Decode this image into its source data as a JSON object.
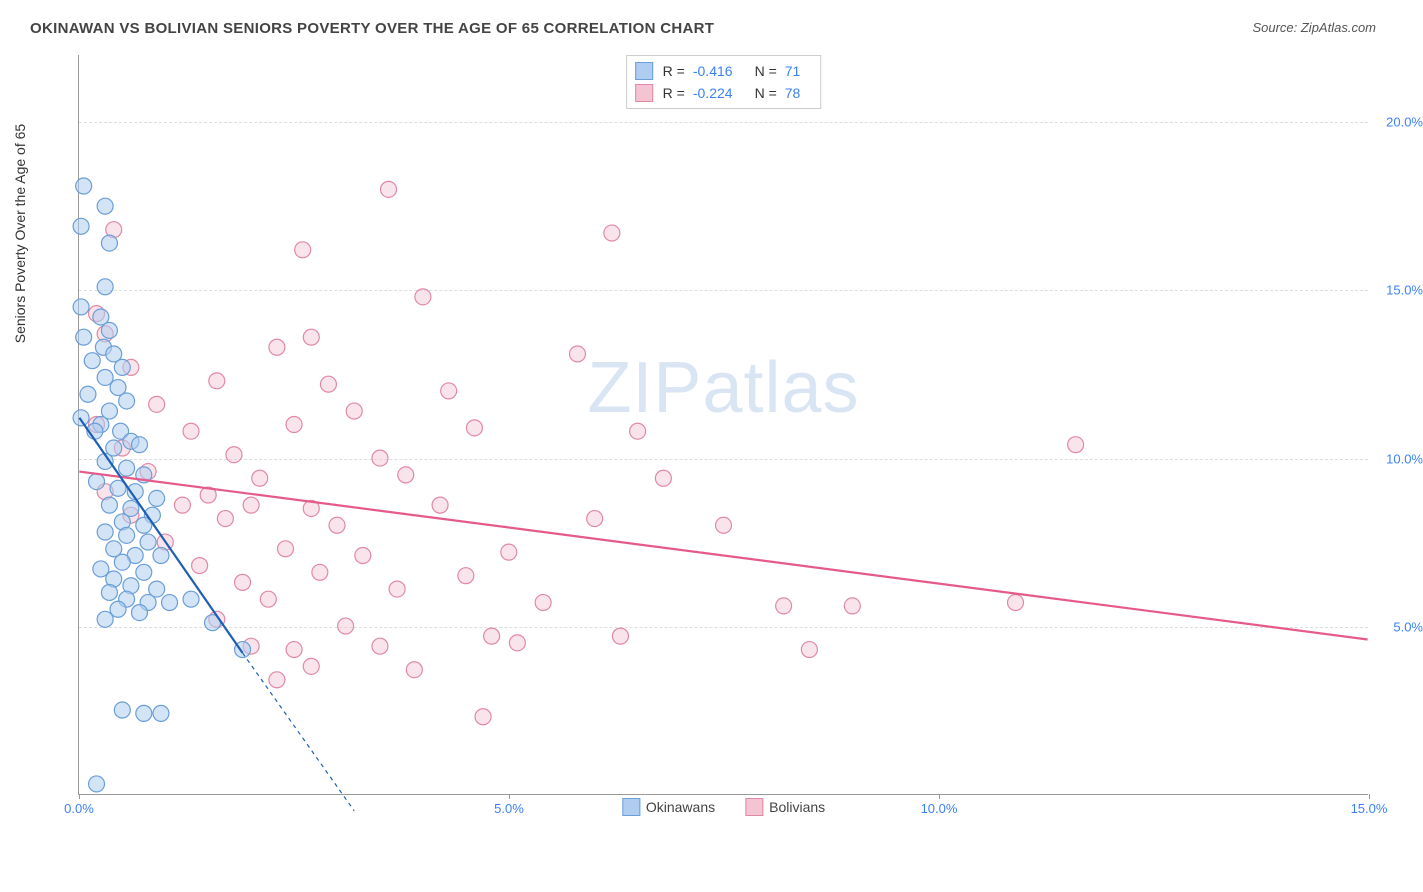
{
  "title": "OKINAWAN VS BOLIVIAN SENIORS POVERTY OVER THE AGE OF 65 CORRELATION CHART",
  "source": "Source: ZipAtlas.com",
  "y_axis_label": "Seniors Poverty Over the Age of 65",
  "watermark_a": "ZIP",
  "watermark_b": "atlas",
  "chart": {
    "type": "scatter",
    "xlim": [
      0,
      15
    ],
    "ylim": [
      0,
      22
    ],
    "xticks": [
      0,
      5,
      10,
      15
    ],
    "xtick_labels": [
      "0.0%",
      "5.0%",
      "10.0%",
      "15.0%"
    ],
    "yticks": [
      5,
      10,
      15,
      20
    ],
    "ytick_labels": [
      "5.0%",
      "10.0%",
      "15.0%",
      "20.0%"
    ],
    "grid_color": "#dddddd",
    "axis_color": "#999999",
    "tick_label_color": "#3b82f6",
    "background_color": "#ffffff",
    "marker_radius": 8,
    "marker_stroke_width": 1.2,
    "trend_line_width": 2.2,
    "trend_dash": "4,4"
  },
  "series_a": {
    "name": "Okinawans",
    "fill": "#aecdf0",
    "stroke": "#6b9ed6",
    "trend_color": "#1e5fb3",
    "fill_opacity": 0.55,
    "R": "-0.416",
    "N": "71",
    "trend": {
      "x1": 0,
      "y1": 11.2,
      "x2": 1.9,
      "y2": 4.2,
      "dash_x1": 0,
      "dash_y1": 11.2,
      "dash_x2": 3.2,
      "dash_y2": -0.5
    },
    "points": [
      [
        0.05,
        18.1
      ],
      [
        0.3,
        17.5
      ],
      [
        0.02,
        16.9
      ],
      [
        0.35,
        16.4
      ],
      [
        0.3,
        15.1
      ],
      [
        0.02,
        14.5
      ],
      [
        0.25,
        14.2
      ],
      [
        0.35,
        13.8
      ],
      [
        0.05,
        13.6
      ],
      [
        0.28,
        13.3
      ],
      [
        0.4,
        13.1
      ],
      [
        0.15,
        12.9
      ],
      [
        0.5,
        12.7
      ],
      [
        0.3,
        12.4
      ],
      [
        0.45,
        12.1
      ],
      [
        0.1,
        11.9
      ],
      [
        0.55,
        11.7
      ],
      [
        0.35,
        11.4
      ],
      [
        0.02,
        11.2
      ],
      [
        0.25,
        11.0
      ],
      [
        0.48,
        10.8
      ],
      [
        0.18,
        10.8
      ],
      [
        0.6,
        10.5
      ],
      [
        0.4,
        10.3
      ],
      [
        0.7,
        10.4
      ],
      [
        0.3,
        9.9
      ],
      [
        0.55,
        9.7
      ],
      [
        0.75,
        9.5
      ],
      [
        0.2,
        9.3
      ],
      [
        0.45,
        9.1
      ],
      [
        0.65,
        9.0
      ],
      [
        0.9,
        8.8
      ],
      [
        0.35,
        8.6
      ],
      [
        0.6,
        8.5
      ],
      [
        0.85,
        8.3
      ],
      [
        0.5,
        8.1
      ],
      [
        0.75,
        8.0
      ],
      [
        0.3,
        7.8
      ],
      [
        0.55,
        7.7
      ],
      [
        0.8,
        7.5
      ],
      [
        0.4,
        7.3
      ],
      [
        0.65,
        7.1
      ],
      [
        0.95,
        7.1
      ],
      [
        0.5,
        6.9
      ],
      [
        0.25,
        6.7
      ],
      [
        0.75,
        6.6
      ],
      [
        0.4,
        6.4
      ],
      [
        0.6,
        6.2
      ],
      [
        0.9,
        6.1
      ],
      [
        0.35,
        6.0
      ],
      [
        0.55,
        5.8
      ],
      [
        0.8,
        5.7
      ],
      [
        1.05,
        5.7
      ],
      [
        0.45,
        5.5
      ],
      [
        0.7,
        5.4
      ],
      [
        0.3,
        5.2
      ],
      [
        1.3,
        5.8
      ],
      [
        1.55,
        5.1
      ],
      [
        1.9,
        4.3
      ],
      [
        0.5,
        2.5
      ],
      [
        0.75,
        2.4
      ],
      [
        0.95,
        2.4
      ],
      [
        0.2,
        0.3
      ]
    ]
  },
  "series_b": {
    "name": "Bolivians",
    "fill": "#f5c4d3",
    "stroke": "#e089a6",
    "trend_color": "#e55a8a",
    "fill_opacity": 0.45,
    "R": "-0.224",
    "N": "78",
    "trend": {
      "x1": 0,
      "y1": 9.6,
      "x2": 15,
      "y2": 4.6,
      "dash_x1": 0,
      "dash_y1": 9.6,
      "dash_x2": 15,
      "dash_y2": 4.6
    },
    "points": [
      [
        3.6,
        18.0
      ],
      [
        0.4,
        16.8
      ],
      [
        6.2,
        16.7
      ],
      [
        2.6,
        16.2
      ],
      [
        0.2,
        14.3
      ],
      [
        4.0,
        14.8
      ],
      [
        0.3,
        13.7
      ],
      [
        2.7,
        13.6
      ],
      [
        2.3,
        13.3
      ],
      [
        5.8,
        13.1
      ],
      [
        0.6,
        12.7
      ],
      [
        1.6,
        12.3
      ],
      [
        2.9,
        12.2
      ],
      [
        4.3,
        12.0
      ],
      [
        0.9,
        11.6
      ],
      [
        3.2,
        11.4
      ],
      [
        0.2,
        11.0
      ],
      [
        1.3,
        10.8
      ],
      [
        2.5,
        11.0
      ],
      [
        4.6,
        10.9
      ],
      [
        6.5,
        10.8
      ],
      [
        11.6,
        10.4
      ],
      [
        0.5,
        10.3
      ],
      [
        1.8,
        10.1
      ],
      [
        3.5,
        10.0
      ],
      [
        0.8,
        9.6
      ],
      [
        2.1,
        9.4
      ],
      [
        3.8,
        9.5
      ],
      [
        6.8,
        9.4
      ],
      [
        0.3,
        9.0
      ],
      [
        1.5,
        8.9
      ],
      [
        1.2,
        8.6
      ],
      [
        2.0,
        8.6
      ],
      [
        2.7,
        8.5
      ],
      [
        4.2,
        8.6
      ],
      [
        0.6,
        8.3
      ],
      [
        1.7,
        8.2
      ],
      [
        3.0,
        8.0
      ],
      [
        6.0,
        8.2
      ],
      [
        7.5,
        8.0
      ],
      [
        1.0,
        7.5
      ],
      [
        2.4,
        7.3
      ],
      [
        3.3,
        7.1
      ],
      [
        5.0,
        7.2
      ],
      [
        1.4,
        6.8
      ],
      [
        2.8,
        6.6
      ],
      [
        4.5,
        6.5
      ],
      [
        1.9,
        6.3
      ],
      [
        3.7,
        6.1
      ],
      [
        2.2,
        5.8
      ],
      [
        5.4,
        5.7
      ],
      [
        8.2,
        5.6
      ],
      [
        9.0,
        5.6
      ],
      [
        10.9,
        5.7
      ],
      [
        1.6,
        5.2
      ],
      [
        3.1,
        5.0
      ],
      [
        4.8,
        4.7
      ],
      [
        6.3,
        4.7
      ],
      [
        2.0,
        4.4
      ],
      [
        3.5,
        4.4
      ],
      [
        2.5,
        4.3
      ],
      [
        5.1,
        4.5
      ],
      [
        8.5,
        4.3
      ],
      [
        2.7,
        3.8
      ],
      [
        3.9,
        3.7
      ],
      [
        2.3,
        3.4
      ],
      [
        4.7,
        2.3
      ]
    ]
  },
  "stats_legend": {
    "R_label": "R =",
    "N_label": "N ="
  },
  "bottom_legend": {
    "a": "Okinawans",
    "b": "Bolivians"
  }
}
